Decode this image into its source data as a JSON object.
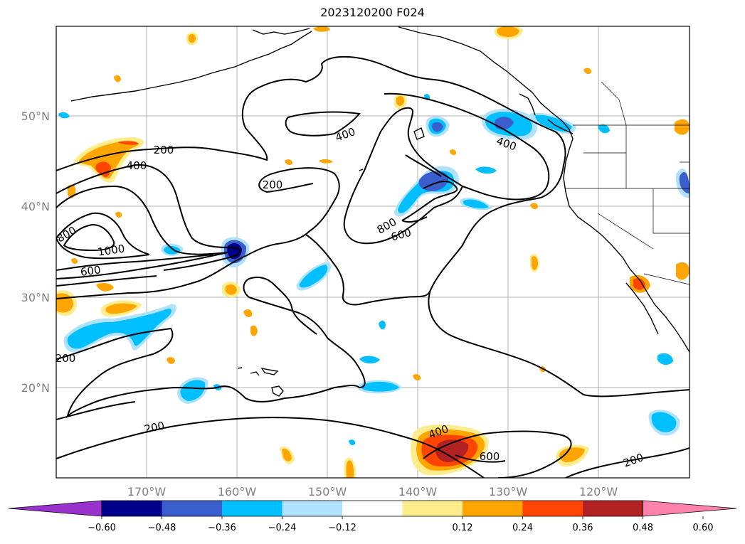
{
  "title": "2023120200 F024",
  "map": {
    "lat_labels": [
      "50°N",
      "40°N",
      "30°N",
      "20°N"
    ],
    "lon_labels": [
      "170°W",
      "160°W",
      "150°W",
      "140°W",
      "130°W",
      "120°W"
    ],
    "contour_labels": [
      "200",
      "400",
      "200",
      "400",
      "400",
      "800",
      "600",
      "800",
      "1000",
      "600",
      "200",
      "400",
      "600",
      "200",
      "200"
    ],
    "grid": true,
    "coastline": true
  },
  "colorbar": {
    "ticks": [
      "−0.60",
      "−0.48",
      "−0.36",
      "−0.24",
      "−0.12",
      "0.12",
      "0.24",
      "0.36",
      "0.48",
      "0.60"
    ],
    "colors": [
      "#9932cc",
      "#00008b",
      "#3a5fcd",
      "#00bfff",
      "#b0e2ff",
      "#ffffff",
      "#ffec8b",
      "#ffa500",
      "#ff4500",
      "#b22222",
      "#ff82ab"
    ]
  }
}
